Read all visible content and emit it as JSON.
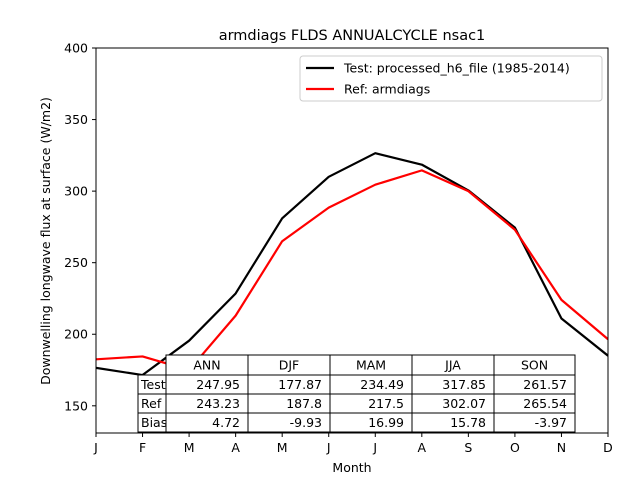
{
  "chart_data": {
    "type": "line",
    "title": "armdiags FLDS ANNUALCYCLE nsac1",
    "xlabel": "Month",
    "ylabel": "Downwelling longwave flux at surface (W/m2)",
    "categories": [
      "J",
      "F",
      "M",
      "A",
      "M",
      "J",
      "J",
      "A",
      "S",
      "O",
      "N",
      "D"
    ],
    "ylim": [
      131,
      400
    ],
    "yticks": [
      150,
      200,
      250,
      300,
      350,
      400
    ],
    "grid": false,
    "legend_position": "top-right",
    "series": [
      {
        "name": "Test: processed_h6_file (1985-2014)",
        "color": "#000000",
        "values": [
          176.5,
          171.5,
          195.5,
          228.5,
          281.0,
          310.0,
          326.5,
          318.5,
          300.5,
          274.5,
          211.0,
          185.0
        ]
      },
      {
        "name": "Ref: armdiags",
        "color": "#ff0000",
        "values": [
          182.5,
          184.5,
          175.0,
          213.0,
          265.0,
          288.5,
          304.5,
          314.5,
          300.0,
          273.0,
          224.0,
          196.5
        ]
      }
    ],
    "table": {
      "col_labels": [
        "ANN",
        "DJF",
        "MAM",
        "JJA",
        "SON"
      ],
      "rows": [
        {
          "label": "Test",
          "values": [
            "247.95",
            "177.87",
            "234.49",
            "317.85",
            "261.57"
          ]
        },
        {
          "label": "Ref",
          "values": [
            "243.23",
            "187.8",
            "217.5",
            "302.07",
            "265.54"
          ]
        },
        {
          "label": "Bias",
          "values": [
            "4.72",
            "-9.93",
            "16.99",
            "15.78",
            "-3.97"
          ]
        }
      ]
    }
  }
}
